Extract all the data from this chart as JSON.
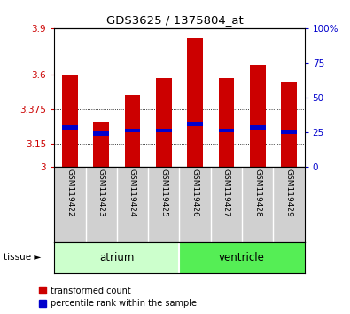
{
  "title": "GDS3625 / 1375804_at",
  "samples": [
    "GSM119422",
    "GSM119423",
    "GSM119424",
    "GSM119425",
    "GSM119426",
    "GSM119427",
    "GSM119428",
    "GSM119429"
  ],
  "transformed_counts": [
    3.595,
    3.285,
    3.465,
    3.575,
    3.835,
    3.575,
    3.665,
    3.545
  ],
  "percentile_values": [
    3.255,
    3.215,
    3.235,
    3.235,
    3.275,
    3.235,
    3.255,
    3.225
  ],
  "ylim": [
    3.0,
    3.9
  ],
  "yticks": [
    3.0,
    3.15,
    3.375,
    3.6,
    3.9
  ],
  "ytick_labels": [
    "3",
    "3.15",
    "3.375",
    "3.6",
    "3.9"
  ],
  "right_yticks": [
    0,
    25,
    50,
    75,
    100
  ],
  "right_ytick_labels": [
    "0",
    "25",
    "50",
    "75",
    "100%"
  ],
  "bar_color": "#cc0000",
  "percentile_color": "#0000cc",
  "bar_width": 0.5,
  "ylabel_left_color": "#cc0000",
  "ylabel_right_color": "#0000cc",
  "background_plot": "#ffffff",
  "tick_area_bg": "#d0d0d0",
  "atrium_color": "#ccffcc",
  "ventricle_color": "#55ee55",
  "atrium_samples": 4,
  "ventricle_samples": 4,
  "atrium_label": "atrium",
  "ventricle_label": "ventricle",
  "tissue_arrow": "tissue ►"
}
